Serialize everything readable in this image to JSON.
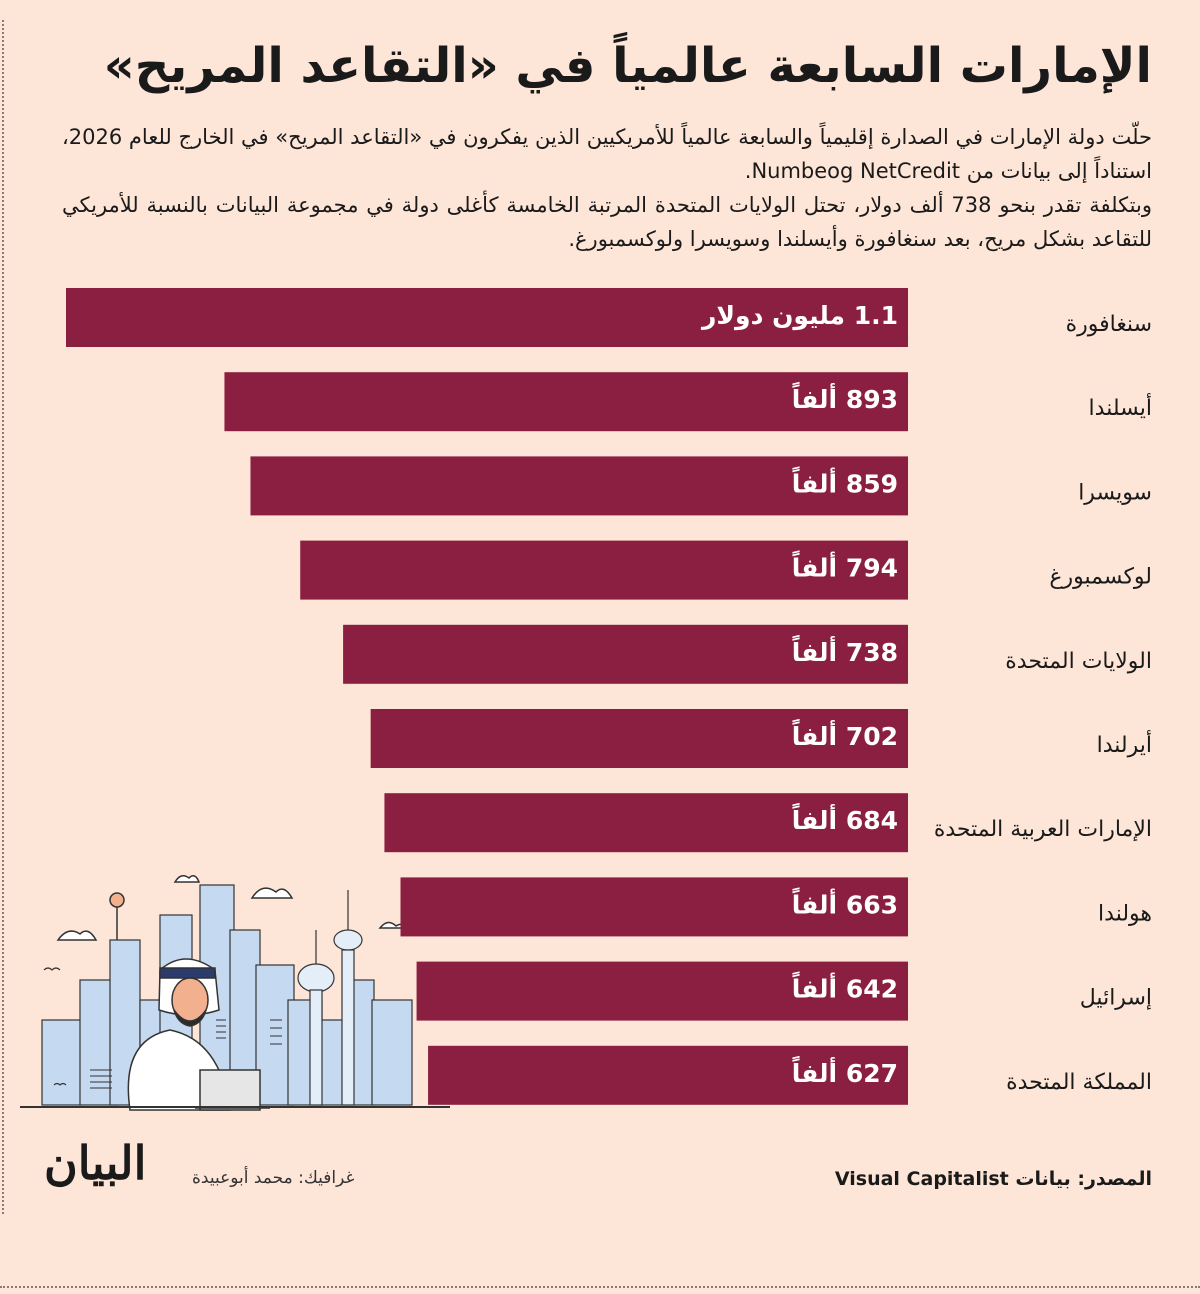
{
  "title": "الإمارات السابعة عالمياً في «التقاعد المريح»",
  "description": {
    "paragraph1": "حلّت دولة الإمارات في الصدارة إقليمياً والسابعة عالمياً للأمريكيين الذين يفكرون في «التقاعد المريح» في الخارج للعام 2026، استناداً إلى بيانات من Numbeog NetCredit.",
    "paragraph2": "وبتكلفة تقدر بنحو 738 ألف دولار، تحتل الولايات المتحدة المرتبة الخامسة كأغلى دولة في مجموعة البيانات بالنسبة للأمريكي للتقاعد بشكل مريح، بعد سنغافورة وأيسلندا وسويسرا ولوكسمبورغ."
  },
  "chart_data": {
    "type": "bar",
    "orientation": "horizontal",
    "unit": "thousand USD",
    "categories": [
      "سنغافورة",
      "أيسلندا",
      "سويسرا",
      "لوكسمبورغ",
      "الولايات المتحدة",
      "أيرلندا",
      "الإمارات العربية المتحدة",
      "هولندا",
      "إسرائيل",
      "المملكة المتحدة"
    ],
    "values": [
      1100,
      893,
      859,
      794,
      738,
      702,
      684,
      663,
      642,
      627
    ],
    "value_labels": [
      "1.1 مليون دولار",
      "893 ألفاً",
      "859 ألفاً",
      "794 ألفاً",
      "738 ألفاً",
      "702 ألفاً",
      "684 ألفاً",
      "663 ألفاً",
      "642 ألفاً",
      "627 ألفاً"
    ],
    "bar_color": "#8b1f41",
    "grid": false
  },
  "footer": {
    "source": "المصدر: بيانات Visual Capitalist",
    "credit": "غرافيك: محمد أبوعبيدة",
    "logo": "البيان"
  },
  "colors": {
    "background": "#fde5d7",
    "bar": "#8b1f41",
    "text": "#1a1a1a"
  },
  "illustration": {
    "icon": "man-at-laptop-city-skyline-icon"
  }
}
